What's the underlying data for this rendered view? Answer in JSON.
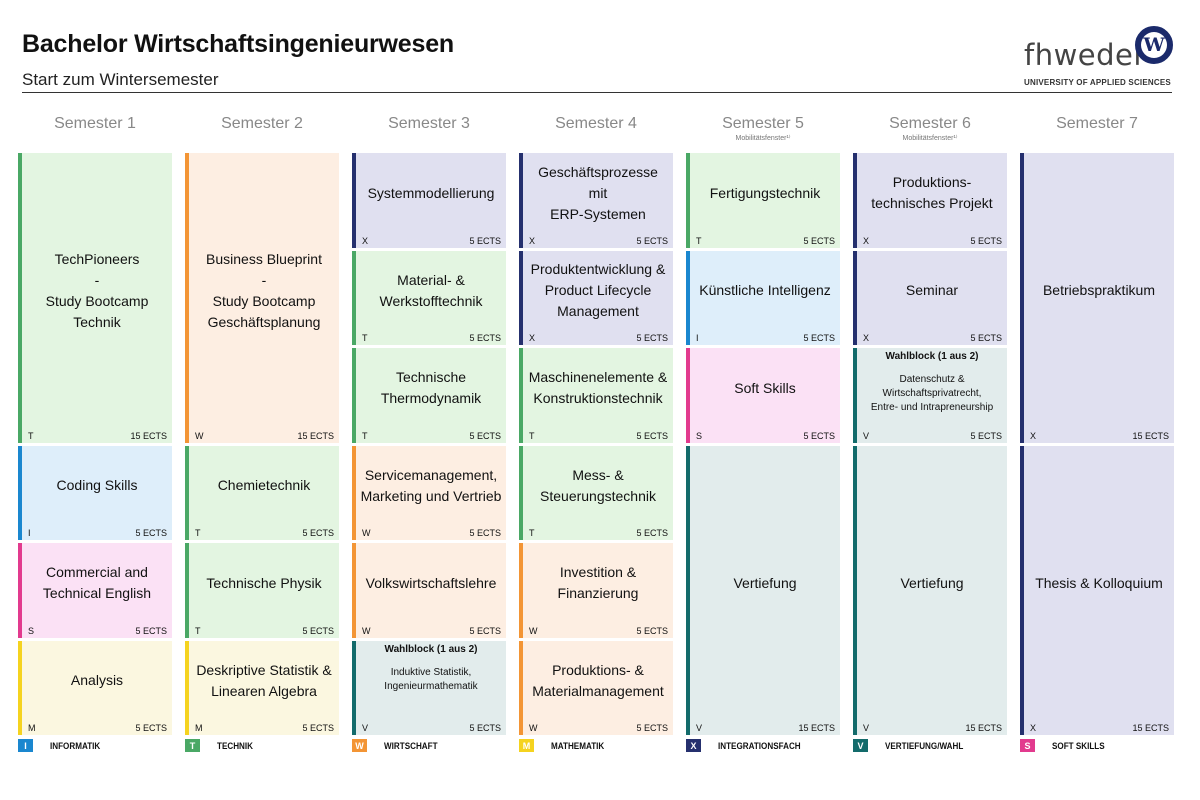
{
  "header": {
    "title": "Bachelor Wirtschaftsingenieurwesen",
    "subtitle": "Start zum Wintersemester",
    "logo_wordmark": "fhwedel",
    "logo_w": "W",
    "logo_subtitle": "UNIVERSITY OF APPLIED SCIENCES"
  },
  "categories": {
    "T": {
      "code": "T",
      "label": "TECHNIK",
      "color": "#4aa865"
    },
    "W": {
      "code": "W",
      "label": "WIRTSCHAFT",
      "color": "#f39535"
    },
    "X": {
      "code": "X",
      "label": "INTEGRATIONSFACH",
      "color": "#25306e"
    },
    "I": {
      "code": "I",
      "label": "INFORMATIK",
      "color": "#1a87cf"
    },
    "S": {
      "code": "S",
      "label": "SOFT SKILLS",
      "color": "#e23a8e"
    },
    "M": {
      "code": "M",
      "label": "MATHEMATIK",
      "color": "#f5d31f"
    },
    "V": {
      "code": "V",
      "label": "VERTIEFUNG/WAHL",
      "color": "#136b6b"
    }
  },
  "legend": [
    {
      "code": "I",
      "label": "INFORMATIK"
    },
    {
      "code": "T",
      "label": "TECHNIK"
    },
    {
      "code": "W",
      "label": "WIRTSCHAFT"
    },
    {
      "code": "M",
      "label": "MATHEMATIK"
    },
    {
      "code": "X",
      "label": "INTEGRATIONSFACH"
    },
    {
      "code": "V",
      "label": "VERTIEFUNG/WAHL"
    },
    {
      "code": "S",
      "label": "SOFT SKILLS"
    }
  ],
  "semesters": [
    {
      "label": "Semester 1",
      "note": "",
      "modules": [
        {
          "lines": [
            "TechPioneers",
            "-",
            "Study Bootcamp",
            "Technik"
          ],
          "cat": "T",
          "ects": "15 ECTS",
          "span": 3
        },
        {
          "lines": [
            "Coding Skills"
          ],
          "cat": "I",
          "ects": "5 ECTS",
          "span": 1
        },
        {
          "lines": [
            "Commercial and",
            "Technical English"
          ],
          "cat": "S",
          "ects": "5 ECTS",
          "span": 1
        },
        {
          "lines": [
            "Analysis"
          ],
          "cat": "M",
          "ects": "5 ECTS",
          "span": 1
        }
      ]
    },
    {
      "label": "Semester 2",
      "note": "",
      "modules": [
        {
          "lines": [
            "Business Blueprint",
            "-",
            "Study Bootcamp",
            "Geschäftsplanung"
          ],
          "cat": "W",
          "ects": "15 ECTS",
          "span": 3
        },
        {
          "lines": [
            "Chemietechnik"
          ],
          "cat": "T",
          "ects": "5 ECTS",
          "span": 1
        },
        {
          "lines": [
            "Technische Physik"
          ],
          "cat": "T",
          "ects": "5 ECTS",
          "span": 1
        },
        {
          "lines": [
            "Deskriptive Statistik &",
            "Linearen Algebra"
          ],
          "cat": "M",
          "ects": "5 ECTS",
          "span": 1
        }
      ]
    },
    {
      "label": "Semester 3",
      "note": "",
      "modules": [
        {
          "lines": [
            "Systemmodellierung"
          ],
          "cat": "X",
          "ects": "5 ECTS",
          "span": 1
        },
        {
          "lines": [
            "Material- &",
            "Werkstofftechnik"
          ],
          "cat": "T",
          "ects": "5 ECTS",
          "span": 1
        },
        {
          "lines": [
            "Technische",
            "Thermodynamik"
          ],
          "cat": "T",
          "ects": "5 ECTS",
          "span": 1
        },
        {
          "lines": [
            "Servicemanagement,",
            "Marketing und Vertrieb"
          ],
          "cat": "W",
          "ects": "5 ECTS",
          "span": 1
        },
        {
          "lines": [
            "Volkswirtschaftslehre"
          ],
          "cat": "W",
          "ects": "5 ECTS",
          "span": 1
        },
        {
          "wahlblock": "Wahlblock (1 aus 2)",
          "lines": [
            "Induktive Statistik,",
            "Ingenieurmathematik"
          ],
          "cat": "V",
          "ects": "5 ECTS",
          "span": 1
        }
      ]
    },
    {
      "label": "Semester 4",
      "note": "",
      "modules": [
        {
          "lines": [
            "Geschäftsprozesse mit",
            "ERP-Systemen"
          ],
          "cat": "X",
          "ects": "5 ECTS",
          "span": 1
        },
        {
          "lines": [
            "Produktentwicklung &",
            "Product Lifecycle",
            "Management"
          ],
          "cat": "X",
          "ects": "5 ECTS",
          "span": 1
        },
        {
          "lines": [
            "Maschinenelemente &",
            "Konstruktionstechnik"
          ],
          "cat": "T",
          "ects": "5 ECTS",
          "span": 1
        },
        {
          "lines": [
            "Mess- &",
            "Steuerungstechnik"
          ],
          "cat": "T",
          "ects": "5 ECTS",
          "span": 1
        },
        {
          "lines": [
            "Investition &",
            "Finanzierung"
          ],
          "cat": "W",
          "ects": "5 ECTS",
          "span": 1
        },
        {
          "lines": [
            "Produktions- &",
            "Materialmanagement"
          ],
          "cat": "W",
          "ects": "5 ECTS",
          "span": 1
        }
      ]
    },
    {
      "label": "Semester 5",
      "note": "Mobilitätsfenster¹⁾",
      "modules": [
        {
          "lines": [
            "Fertigungstechnik"
          ],
          "cat": "T",
          "ects": "5 ECTS",
          "span": 1
        },
        {
          "lines": [
            "Künstliche Intelligenz"
          ],
          "cat": "I",
          "ects": "5 ECTS",
          "span": 1
        },
        {
          "lines": [
            "Soft Skills"
          ],
          "cat": "S",
          "ects": "5 ECTS",
          "span": 1
        },
        {
          "lines": [
            "Vertiefung"
          ],
          "cat": "V",
          "ects": "15 ECTS",
          "span": 3
        }
      ]
    },
    {
      "label": "Semester 6",
      "note": "Mobilitätsfenster¹⁾",
      "modules": [
        {
          "lines": [
            "Produktions-",
            "technisches Projekt"
          ],
          "cat": "X",
          "ects": "5 ECTS",
          "span": 1
        },
        {
          "lines": [
            "Seminar"
          ],
          "cat": "X",
          "ects": "5 ECTS",
          "span": 1
        },
        {
          "wahlblock": "Wahlblock (1 aus 2)",
          "lines": [
            "Datenschutz &",
            "Wirtschaftsprivatrecht,",
            "Entre- und Intrapreneurship"
          ],
          "cat": "V",
          "ects": "5 ECTS",
          "span": 1
        },
        {
          "lines": [
            "Vertiefung"
          ],
          "cat": "V",
          "ects": "15 ECTS",
          "span": 3
        }
      ]
    },
    {
      "label": "Semester 7",
      "note": "",
      "modules": [
        {
          "lines": [
            "Betriebspraktikum"
          ],
          "cat": "X",
          "ects": "15 ECTS",
          "span": 3
        },
        {
          "lines": [
            "Thesis & Kolloquium"
          ],
          "cat": "X",
          "ects": "15 ECTS",
          "span": 3
        }
      ]
    }
  ]
}
